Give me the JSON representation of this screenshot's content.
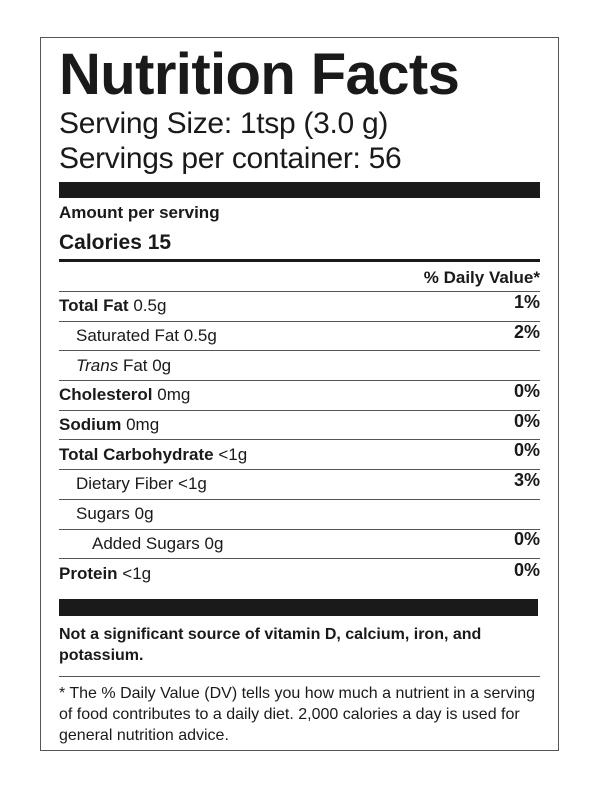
{
  "title": "Nutrition Facts",
  "serving_size": "Serving Size: 1tsp (3.0 g)",
  "servings_per_container": "Servings per container: 56",
  "amount_per_serving": "Amount per serving",
  "calories": "Calories 15",
  "daily_value_header": "% Daily Value*",
  "nutrients": [
    {
      "name": "Total Fat",
      "amount": "0.5g",
      "dv": "1%"
    },
    {
      "name": "Saturated Fat",
      "amount": "0.5g",
      "dv": "2%"
    },
    {
      "name": "Trans",
      "amount": "Fat 0g",
      "dv": ""
    },
    {
      "name": "Cholesterol",
      "amount": "0mg",
      "dv": "0%"
    },
    {
      "name": "Sodium",
      "amount": "0mg",
      "dv": "0%"
    },
    {
      "name": "Total Carbohydrate",
      "amount": "<1g",
      "dv": "0%"
    },
    {
      "name": "Dietary Fiber",
      "amount": "<1g",
      "dv": "3%"
    },
    {
      "name": "Sugars",
      "amount": "0g",
      "dv": ""
    },
    {
      "name": "Added Sugars",
      "amount": "0g",
      "dv": "0%"
    },
    {
      "name": "Protein",
      "amount": "<1g",
      "dv": "0%"
    }
  ],
  "not_significant": "Not a significant source of vitamin D, calcium, iron, and potassium.",
  "footnote": "* The % Daily Value (DV) tells you how much a nutrient in a serving of food contributes to a daily diet. 2,000 calories a day is used for general nutrition advice."
}
